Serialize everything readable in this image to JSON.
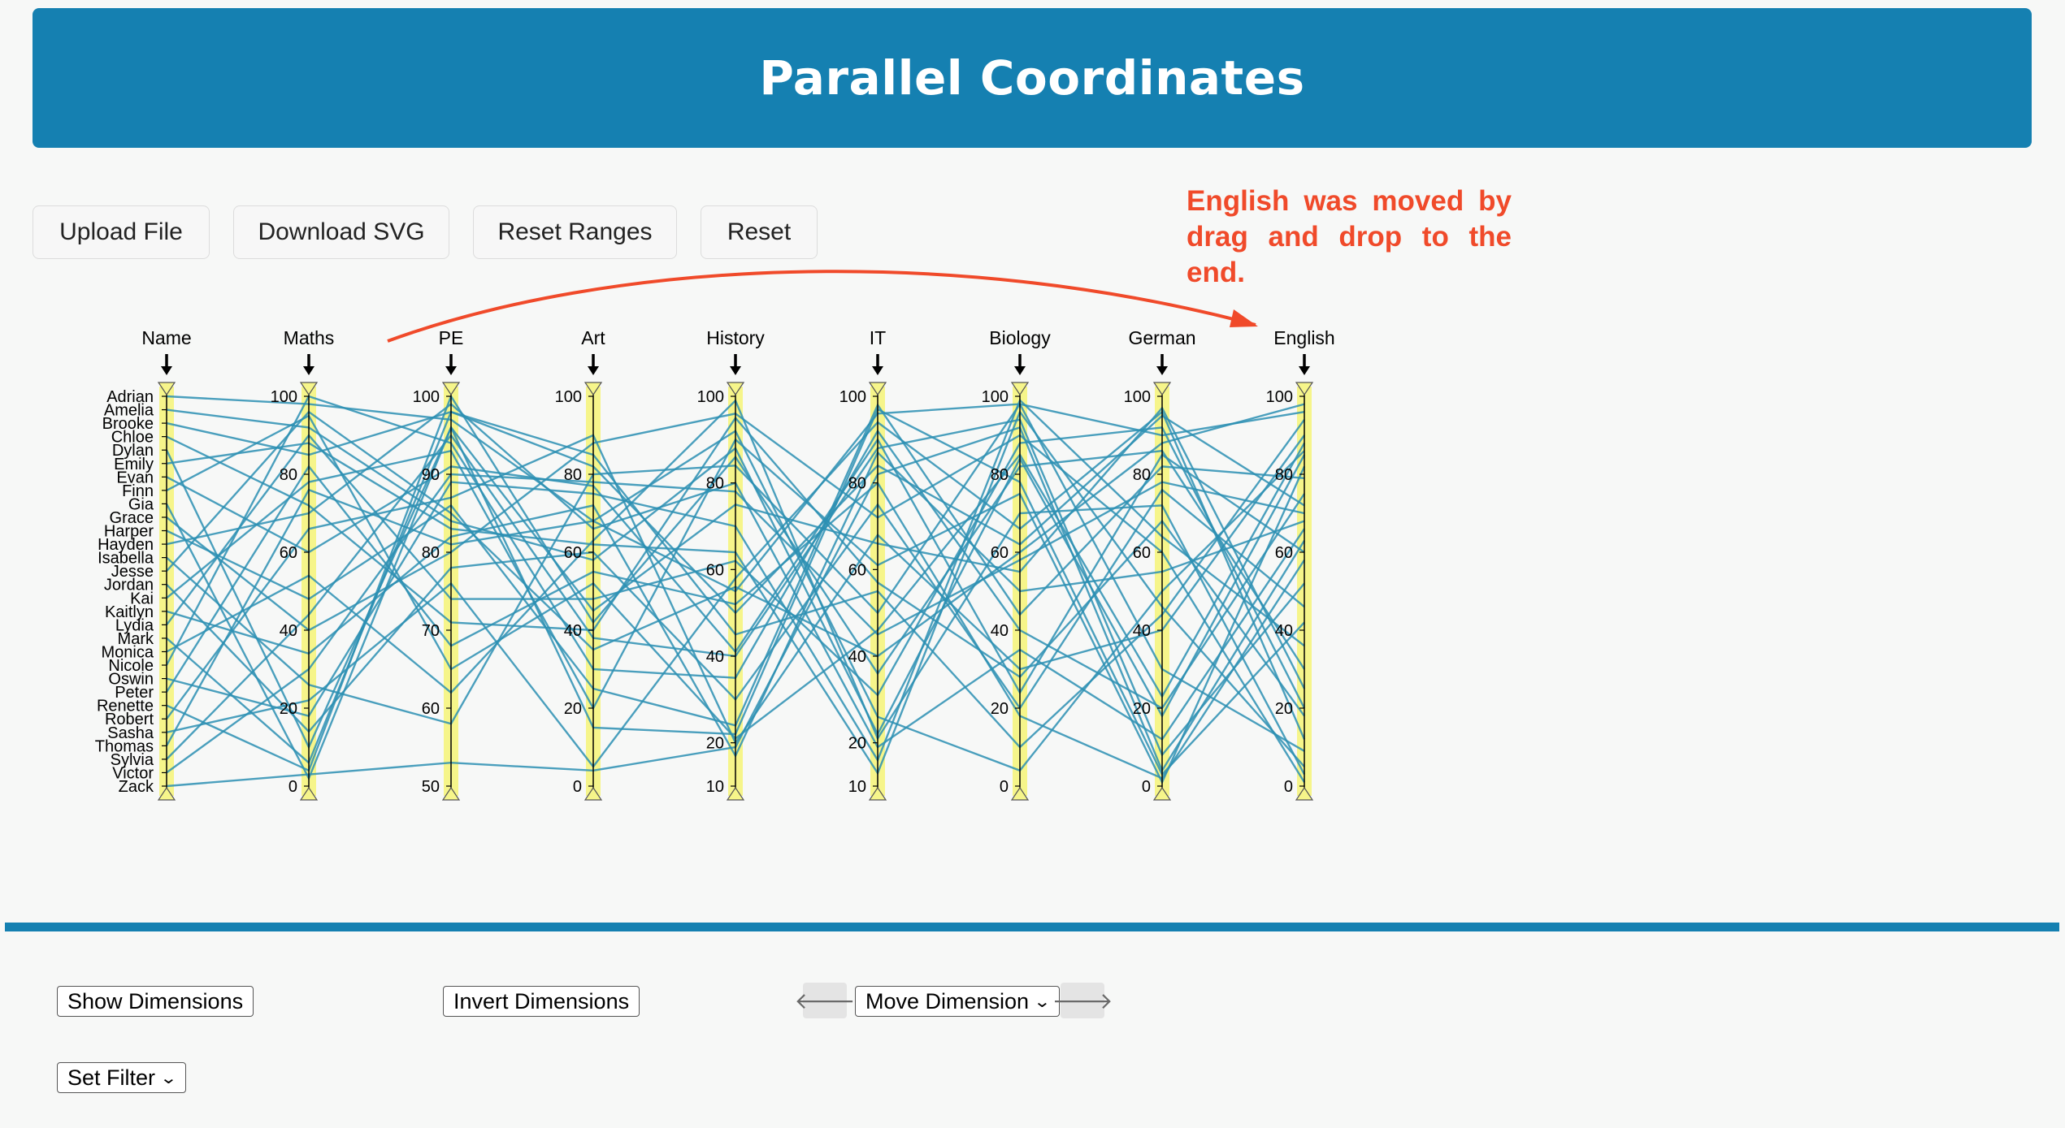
{
  "header": {
    "title": "Parallel Coordinates"
  },
  "toolbar": {
    "upload": "Upload File",
    "download": "Download SVG",
    "reset_ranges": "Reset Ranges",
    "reset": "Reset"
  },
  "annotation": {
    "text": "English was moved by drag and drop to the end."
  },
  "controls": {
    "show_dimensions": "Show Dimensions",
    "invert_dimensions": "Invert Dimensions",
    "move_dimension": "Move Dimension",
    "set_filter": "Set Filter",
    "left_arrow": "🡐",
    "right_arrow": "🡒"
  },
  "colors": {
    "header": "#1580b1",
    "line": "#2b8fb3",
    "axis_highlight": "#f6f58a",
    "annotation": "#f04a2a"
  },
  "chart_data": {
    "type": "parallel-coordinates",
    "dimensions": [
      {
        "name": "Name",
        "type": "categorical",
        "values": [
          "Adrian",
          "Amelia",
          "Brooke",
          "Chloe",
          "Dylan",
          "Emily",
          "Evan",
          "Finn",
          "Gia",
          "Grace",
          "Harper",
          "Hayden",
          "Isabella",
          "Jesse",
          "Jordan",
          "Kai",
          "Kaitlyn",
          "Lydia",
          "Mark",
          "Monica",
          "Nicole",
          "Oswin",
          "Peter",
          "Renette",
          "Robert",
          "Sasha",
          "Thomas",
          "Sylvia",
          "Victor",
          "Zack"
        ]
      },
      {
        "name": "Maths",
        "type": "numeric",
        "domain": [
          0,
          100
        ],
        "ticks": [
          0,
          20,
          40,
          60,
          80,
          100
        ]
      },
      {
        "name": "PE",
        "type": "numeric",
        "domain": [
          50,
          100
        ],
        "ticks": [
          50,
          60,
          70,
          80,
          90,
          100
        ]
      },
      {
        "name": "Art",
        "type": "numeric",
        "domain": [
          0,
          100
        ],
        "ticks": [
          0,
          20,
          40,
          60,
          80,
          100
        ]
      },
      {
        "name": "History",
        "type": "numeric",
        "domain": [
          10,
          100
        ],
        "ticks": [
          10,
          20,
          40,
          60,
          80,
          100
        ]
      },
      {
        "name": "IT",
        "type": "numeric",
        "domain": [
          10,
          100
        ],
        "ticks": [
          10,
          20,
          40,
          60,
          80,
          100
        ]
      },
      {
        "name": "Biology",
        "type": "numeric",
        "domain": [
          0,
          100
        ],
        "ticks": [
          0,
          20,
          40,
          60,
          80,
          100
        ]
      },
      {
        "name": "German",
        "type": "numeric",
        "domain": [
          0,
          100
        ],
        "ticks": [
          0,
          20,
          40,
          60,
          80,
          100
        ]
      },
      {
        "name": "English",
        "type": "numeric",
        "domain": [
          0,
          100
        ],
        "ticks": [
          0,
          20,
          40,
          60,
          80,
          100
        ]
      }
    ],
    "records": [
      {
        "Name": "Adrian",
        "Maths": 98,
        "PE": 97,
        "Art": 68,
        "History": 55,
        "IT": 96,
        "Biology": 98,
        "German": 90,
        "English": 96
      },
      {
        "Name": "Amelia",
        "Maths": 92,
        "PE": 84,
        "Art": 58,
        "History": 88,
        "IT": 22,
        "Biology": 84,
        "German": 18,
        "English": 85
      },
      {
        "Name": "Brooke",
        "Maths": 85,
        "PE": 98,
        "Art": 82,
        "History": 50,
        "IT": 84,
        "Biology": 62,
        "German": 95,
        "English": 72
      },
      {
        "Name": "Chloe",
        "Maths": 72,
        "PE": 71,
        "Art": 40,
        "History": 95,
        "IT": 57,
        "Biology": 28,
        "German": 68,
        "English": 18
      },
      {
        "Name": "Dylan",
        "Maths": 10,
        "PE": 96,
        "Art": 15,
        "History": 22,
        "IT": 97,
        "Biology": 78,
        "German": 3,
        "English": 42
      },
      {
        "Name": "Emily",
        "Maths": 88,
        "PE": 83,
        "Art": 62,
        "History": 64,
        "IT": 13,
        "Biology": 96,
        "German": 46,
        "English": 5
      },
      {
        "Name": "Evan",
        "Maths": 60,
        "PE": 91,
        "Art": 77,
        "History": 41,
        "IT": 90,
        "Biology": 24,
        "German": 85,
        "English": 60
      },
      {
        "Name": "Finn",
        "Maths": 95,
        "PE": 65,
        "Art": 52,
        "History": 21,
        "IT": 46,
        "Biology": 85,
        "German": 23,
        "English": 88
      },
      {
        "Name": "Gia",
        "Maths": 2,
        "PE": 96,
        "Art": 45,
        "History": 75,
        "IT": 66,
        "Biology": 55,
        "German": 97,
        "English": 25
      },
      {
        "Name": "Grace",
        "Maths": 40,
        "PE": 80,
        "Art": 88,
        "History": 96,
        "IT": 72,
        "Biology": 90,
        "German": 60,
        "English": 1
      },
      {
        "Name": "Harper",
        "Maths": 48,
        "PE": 86,
        "Art": 25,
        "History": 24,
        "IT": 98,
        "Biology": 44,
        "German": 82,
        "English": 79
      },
      {
        "Name": "Hayden",
        "Maths": 70,
        "PE": 99,
        "Art": 66,
        "History": 80,
        "IT": 19,
        "Biology": 35,
        "German": 12,
        "English": 66
      },
      {
        "Name": "Isabella",
        "Maths": 26,
        "PE": 58,
        "Art": 80,
        "History": 84,
        "IT": 50,
        "Biology": 98,
        "German": 30,
        "English": 9
      },
      {
        "Name": "Jesse",
        "Maths": 96,
        "PE": 85,
        "Art": 35,
        "History": 56,
        "IT": 40,
        "Biology": 60,
        "German": 88,
        "English": 98
      },
      {
        "Name": "Jordan",
        "Maths": 14,
        "PE": 78,
        "Art": 60,
        "History": 30,
        "IT": 75,
        "Biology": 20,
        "German": 76,
        "English": 46
      },
      {
        "Name": "Kai",
        "Maths": 78,
        "PE": 93,
        "Art": 20,
        "History": 90,
        "IT": 61,
        "Biology": 75,
        "German": 1,
        "English": 82
      },
      {
        "Name": "Kaitlyn",
        "Maths": 34,
        "PE": 82,
        "Art": 72,
        "History": 17,
        "IT": 87,
        "Biology": 50,
        "German": 55,
        "English": 68
      },
      {
        "Name": "Lydia",
        "Maths": 90,
        "PE": 74,
        "Art": 48,
        "History": 62,
        "IT": 31,
        "Biology": 88,
        "German": 92,
        "English": 20
      },
      {
        "Name": "Mark",
        "Maths": 6,
        "PE": 98,
        "Art": 85,
        "History": 45,
        "IT": 55,
        "Biology": 10,
        "German": 44,
        "English": 94
      },
      {
        "Name": "Monica",
        "Maths": 54,
        "PE": 62,
        "Art": 63,
        "History": 99,
        "IT": 21,
        "Biology": 70,
        "German": 72,
        "English": 3
      },
      {
        "Name": "Nicole",
        "Maths": 100,
        "PE": 94,
        "Art": 30,
        "History": 35,
        "IT": 92,
        "Biology": 40,
        "German": 20,
        "English": 75
      },
      {
        "Name": "Oswin",
        "Maths": 18,
        "PE": 89,
        "Art": 75,
        "History": 70,
        "IT": 16,
        "Biology": 99,
        "German": 64,
        "English": 36
      },
      {
        "Name": "Peter",
        "Maths": 82,
        "PE": 68,
        "Art": 55,
        "History": 52,
        "IT": 80,
        "Biology": 18,
        "German": 2,
        "English": 58
      },
      {
        "Name": "Renette",
        "Maths": 4,
        "PE": 100,
        "Art": 42,
        "History": 86,
        "IT": 36,
        "Biology": 82,
        "German": 86,
        "English": 30
      },
      {
        "Name": "Robert",
        "Maths": 66,
        "PE": 87,
        "Art": 90,
        "History": 20,
        "IT": 68,
        "Biology": 30,
        "German": 40,
        "English": 90
      },
      {
        "Name": "Sasha",
        "Maths": 22,
        "PE": 76,
        "Art": 5,
        "History": 58,
        "IT": 94,
        "Biology": 66,
        "German": 96,
        "English": 12
      },
      {
        "Name": "Thomas",
        "Maths": 76,
        "PE": 81,
        "Art": 68,
        "History": 92,
        "IT": 26,
        "Biology": 4,
        "German": 50,
        "English": 86
      },
      {
        "Name": "Sylvia",
        "Maths": 44,
        "PE": 95,
        "Art": 38,
        "History": 40,
        "IT": 88,
        "Biology": 94,
        "German": 8,
        "English": 52
      },
      {
        "Name": "Victor",
        "Maths": 30,
        "PE": 90,
        "Art": 78,
        "History": 78,
        "IT": 45,
        "Biology": 58,
        "German": 78,
        "English": 70
      },
      {
        "Name": "Zack",
        "Maths": 3,
        "PE": 53,
        "Art": 4,
        "History": 19,
        "IT": 82,
        "Biology": 92,
        "German": 4,
        "English": 63
      }
    ]
  }
}
